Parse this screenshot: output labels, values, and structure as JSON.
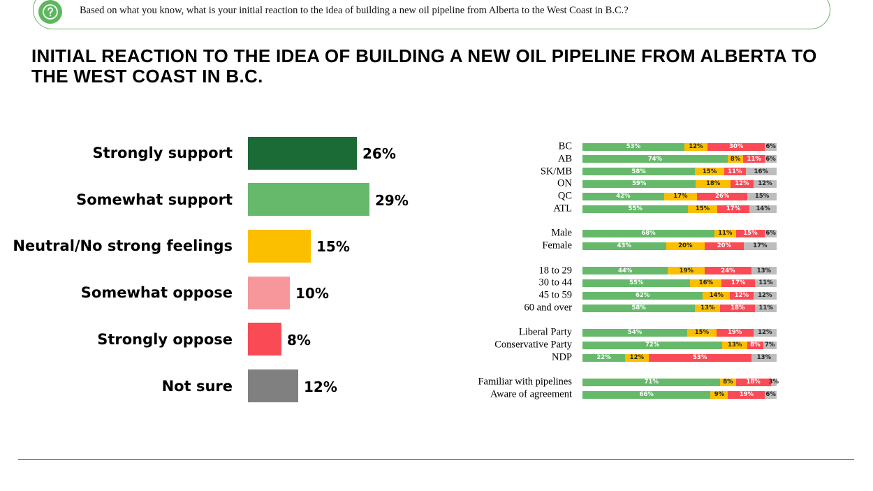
{
  "question": "Based on what you know, what is your initial reaction to the idea of building a new oil pipeline from Alberta to the West Coast in B.C.?",
  "title": "INITIAL REACTION TO THE IDEA OF BUILDING A NEW OIL PIPELINE FROM ALBERTA TO THE WEST COAST IN B.C.",
  "icon": "question-bubble-icon",
  "colors": {
    "strongly_support": "#1a6b36",
    "somewhat_support": "#66b96a",
    "neutral": "#fbbf00",
    "somewhat_oppose": "#f7979c",
    "strongly_oppose": "#f94a55",
    "not_sure": "#808080",
    "seg_support": "#66b96a",
    "seg_neutral": "#fbbf00",
    "seg_oppose": "#f94a55",
    "seg_notsure": "#bdbdbd"
  },
  "chart_data": [
    {
      "type": "bar",
      "orientation": "horizontal",
      "categories": [
        "Strongly support",
        "Somewhat support",
        "Neutral/No strong feelings",
        "Somewhat oppose",
        "Strongly oppose",
        "Not sure"
      ],
      "values": [
        26,
        29,
        15,
        10,
        8,
        12
      ],
      "value_labels": [
        "26%",
        "29%",
        "15%",
        "10%",
        "8%",
        "12%"
      ]
    },
    {
      "type": "bar",
      "orientation": "horizontal",
      "stacked": true,
      "segment_order": [
        "support",
        "neutral",
        "oppose",
        "not_sure"
      ],
      "groups": [
        {
          "rows": [
            {
              "label": "BC",
              "values": [
                53,
                12,
                30,
                6
              ]
            },
            {
              "label": "AB",
              "values": [
                74,
                8,
                11,
                6
              ]
            },
            {
              "label": "SK/MB",
              "values": [
                58,
                15,
                11,
                16
              ]
            },
            {
              "label": "ON",
              "values": [
                59,
                18,
                12,
                12
              ]
            },
            {
              "label": "QC",
              "values": [
                42,
                17,
                26,
                15
              ]
            },
            {
              "label": "ATL",
              "values": [
                55,
                15,
                17,
                14
              ]
            }
          ]
        },
        {
          "rows": [
            {
              "label": "Male",
              "values": [
                68,
                11,
                15,
                6
              ]
            },
            {
              "label": "Female",
              "values": [
                43,
                20,
                20,
                17
              ]
            }
          ]
        },
        {
          "rows": [
            {
              "label": "18 to 29",
              "values": [
                44,
                19,
                24,
                13
              ]
            },
            {
              "label": "30 to 44",
              "values": [
                55,
                16,
                17,
                11
              ]
            },
            {
              "label": "45 to 59",
              "values": [
                62,
                14,
                12,
                12
              ]
            },
            {
              "label": "60 and over",
              "values": [
                58,
                13,
                18,
                11
              ]
            }
          ]
        },
        {
          "rows": [
            {
              "label": "Liberal Party",
              "values": [
                54,
                15,
                19,
                12
              ]
            },
            {
              "label": "Conservative Party",
              "values": [
                72,
                13,
                8,
                7
              ]
            },
            {
              "label": "NDP",
              "values": [
                22,
                12,
                53,
                13
              ]
            }
          ]
        },
        {
          "rows": [
            {
              "label": "Familiar with pipelines",
              "values": [
                71,
                8,
                18,
                3
              ]
            },
            {
              "label": "Aware of agreement",
              "values": [
                66,
                9,
                19,
                6
              ]
            }
          ]
        }
      ]
    }
  ]
}
